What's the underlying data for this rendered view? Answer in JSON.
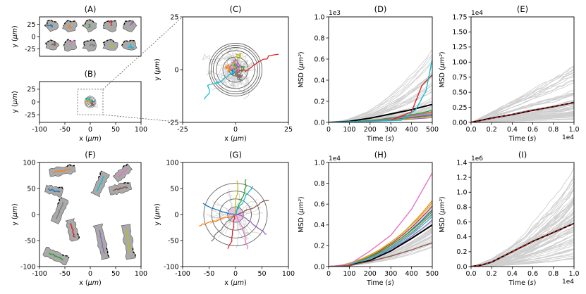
{
  "figure": {
    "panels": [
      {
        "id": "A",
        "title": "(A)"
      },
      {
        "id": "B",
        "title": "(B)"
      },
      {
        "id": "C",
        "title": "(C)"
      },
      {
        "id": "D",
        "title": "(D)"
      },
      {
        "id": "E",
        "title": "(E)"
      },
      {
        "id": "F",
        "title": "(F)"
      },
      {
        "id": "G",
        "title": "(G)"
      },
      {
        "id": "H",
        "title": "(H)"
      },
      {
        "id": "I",
        "title": "(I)"
      }
    ]
  },
  "chart_data": [
    {
      "panel": "A",
      "title": "(A)",
      "type": "scatter",
      "xlabel": "",
      "ylabel": "y (μm)",
      "xlim": [
        -100,
        100
      ],
      "ylim": [
        -40,
        40
      ],
      "xticks": [],
      "yticks": [
        25,
        0,
        -25
      ],
      "note": "10 cell outlines (grey) with black dashed boundaries and colored trajectories"
    },
    {
      "panel": "B",
      "title": "(B)",
      "type": "scatter",
      "xlabel": "x (μm)",
      "ylabel": "y (μm)",
      "xlim": [
        -100,
        100
      ],
      "ylim": [
        -40,
        40
      ],
      "xticks": [
        -100,
        -50,
        0,
        50,
        100
      ],
      "yticks": [
        25,
        0,
        -25
      ],
      "note": "all trajectories centred at origin; dashed box indicates zoom region shown in (C)"
    },
    {
      "panel": "C",
      "title": "(C)",
      "type": "line",
      "xlabel": "x (μm)",
      "ylabel": "y (μm)",
      "xlim": [
        -25,
        25
      ],
      "ylim": [
        -25,
        25
      ],
      "xticks": [
        -25,
        0,
        25
      ],
      "yticks": [
        25,
        0,
        -25
      ],
      "note": "zoomed trajectories with concentric circles of radii 3, 6, 9, 11, 12 μm"
    },
    {
      "panel": "D",
      "title": "(D)",
      "type": "line",
      "xlabel": "Time (s)",
      "ylabel": "MSD (μm²)",
      "multiplier": "1e3",
      "xlim": [
        0,
        500
      ],
      "ylim": [
        0,
        1.0
      ],
      "xticks": [
        0,
        100,
        200,
        300,
        400,
        500
      ],
      "yticks": [
        0.0,
        0.2,
        0.4,
        0.6,
        0.8,
        1.0
      ],
      "series": [
        {
          "name": "mean",
          "color": "#000000",
          "x": [
            0,
            100,
            200,
            300,
            400,
            500
          ],
          "y": [
            0,
            0.01,
            0.04,
            0.08,
            0.12,
            0.17
          ]
        },
        {
          "name": "red",
          "color": "#d62728",
          "x": [
            0,
            300,
            400,
            450,
            500
          ],
          "y": [
            0,
            0.02,
            0.1,
            0.35,
            0.45
          ]
        },
        {
          "name": "cyan",
          "color": "#17becf",
          "x": [
            0,
            350,
            420,
            470,
            500
          ],
          "y": [
            0,
            0.02,
            0.12,
            0.3,
            0.6
          ]
        }
      ]
    },
    {
      "panel": "E",
      "title": "(E)",
      "type": "line",
      "xlabel": "Time (s)",
      "ylabel": "MSD (μm²)",
      "multiplier": "1e4",
      "xmultiplier": "1e4",
      "xlim": [
        0,
        1.0
      ],
      "ylim": [
        0,
        1.75
      ],
      "xticks": [
        0.0,
        0.2,
        0.4,
        0.6,
        0.8,
        1.0
      ],
      "yticks": [
        0.0,
        0.25,
        0.5,
        0.75,
        1.0,
        1.25,
        1.5,
        1.75
      ],
      "series": [
        {
          "name": "mean",
          "color": "#000000",
          "x": [
            0,
            0.2,
            0.4,
            0.6,
            0.8,
            1.0
          ],
          "y": [
            0,
            0.07,
            0.13,
            0.2,
            0.26,
            0.33
          ]
        },
        {
          "name": "fit",
          "color": "#d62728",
          "style": "dashed",
          "x": [
            0,
            1.0
          ],
          "y": [
            0,
            0.33
          ]
        }
      ]
    },
    {
      "panel": "F",
      "title": "(F)",
      "type": "scatter",
      "xlabel": "x (μm)",
      "ylabel": "y (μm)",
      "xlim": [
        -100,
        100
      ],
      "ylim": [
        -100,
        100
      ],
      "xticks": [
        -100,
        -50,
        0,
        50,
        100
      ],
      "yticks": [
        -100,
        -50,
        0,
        50,
        100
      ],
      "note": "10 elongated cell outlines with colored trajectories"
    },
    {
      "panel": "G",
      "title": "(G)",
      "type": "line",
      "xlabel": "x (μm)",
      "ylabel": "y (μm)",
      "xlim": [
        -100,
        100
      ],
      "ylim": [
        -100,
        100
      ],
      "xticks": [
        -100,
        -50,
        0,
        50,
        100
      ],
      "yticks": [
        -100,
        -50,
        0,
        50,
        100
      ],
      "note": "trajectories centred at origin with concentric circles of radii 15, 30, 45, 60 μm"
    },
    {
      "panel": "H",
      "title": "(H)",
      "type": "line",
      "xlabel": "Time (s)",
      "ylabel": "MSD (μm²)",
      "multiplier": "1e4",
      "xlim": [
        0,
        500
      ],
      "ylim": [
        0,
        1.0
      ],
      "xticks": [
        0,
        100,
        200,
        300,
        400,
        500
      ],
      "yticks": [
        0.0,
        0.2,
        0.4,
        0.6,
        0.8,
        1.0
      ],
      "series": [
        {
          "name": "mean",
          "color": "#000000",
          "x": [
            0,
            100,
            200,
            300,
            400,
            500
          ],
          "y": [
            0,
            0.01,
            0.06,
            0.15,
            0.27,
            0.4
          ]
        },
        {
          "name": "pink",
          "color": "#e377c2",
          "x": [
            0,
            100,
            200,
            300,
            400,
            500
          ],
          "y": [
            0,
            0.02,
            0.15,
            0.3,
            0.55,
            0.9
          ]
        },
        {
          "name": "brown",
          "color": "#8c564b",
          "x": [
            0,
            100,
            200,
            300,
            400,
            500
          ],
          "y": [
            0,
            0.01,
            0.05,
            0.1,
            0.16,
            0.23
          ]
        }
      ]
    },
    {
      "panel": "I",
      "title": "(I)",
      "type": "line",
      "xlabel": "Time (s)",
      "ylabel": "MSD (μm²)",
      "multiplier": "1e6",
      "xmultiplier": "1e4",
      "xlim": [
        0,
        1.0
      ],
      "ylim": [
        0,
        1.4
      ],
      "xticks": [
        0.0,
        0.2,
        0.4,
        0.6,
        0.8,
        1.0
      ],
      "yticks": [
        0.0,
        0.2,
        0.4,
        0.6,
        0.8,
        1.0,
        1.2,
        1.4
      ],
      "series": [
        {
          "name": "mean",
          "color": "#000000",
          "x": [
            0,
            0.1,
            0.2,
            0.4,
            0.6,
            0.8,
            1.0
          ],
          "y": [
            0,
            0.02,
            0.06,
            0.2,
            0.34,
            0.46,
            0.58
          ]
        },
        {
          "name": "fit",
          "color": "#d62728",
          "style": "dashed",
          "x": [
            0,
            0.1,
            0.2,
            0.4,
            0.6,
            0.8,
            1.0
          ],
          "y": [
            0,
            0.02,
            0.06,
            0.2,
            0.34,
            0.46,
            0.58
          ]
        }
      ]
    }
  ]
}
